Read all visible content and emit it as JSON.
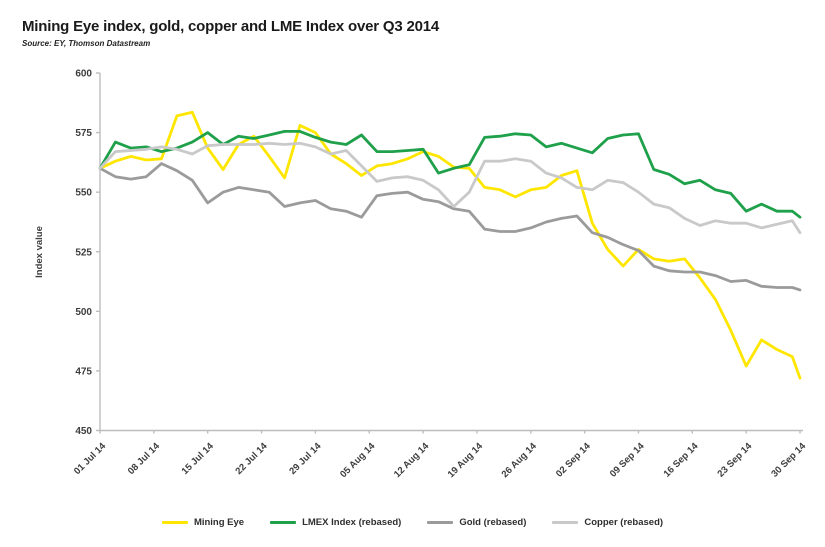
{
  "title": "Mining Eye index, gold, copper and LME Index over Q3 2014",
  "source": "Source: EY, Thomson Datastream",
  "chart_data": {
    "type": "line",
    "title": "Mining Eye index, gold, copper and LME Index over Q3 2014",
    "subtitle": "Source: EY, Thomson Datastream",
    "xlabel": "",
    "ylabel": "Index value",
    "ylim": [
      450,
      600
    ],
    "grid": false,
    "legend_position": "bottom",
    "y_ticks": [
      450,
      475,
      500,
      525,
      550,
      575,
      600
    ],
    "x_tick_labels": [
      "01 Jul 14",
      "08 Jul 14",
      "15 Jul 14",
      "22 Jul 14",
      "29 Jul 14",
      "05 Aug 14",
      "12 Aug 14",
      "19 Aug 14",
      "26 Aug 14",
      "02 Sep 14",
      "09 Sep 14",
      "16 Sep 14",
      "23 Sep 14",
      "30 Sep 14"
    ],
    "x_tick_days": [
      0,
      7,
      14,
      21,
      28,
      35,
      42,
      49,
      56,
      63,
      70,
      77,
      84,
      91
    ],
    "x_days": [
      0,
      2,
      4,
      6,
      8,
      10,
      12,
      14,
      16,
      18,
      20,
      22,
      24,
      26,
      28,
      30,
      32,
      34,
      36,
      38,
      40,
      42,
      44,
      46,
      48,
      50,
      52,
      54,
      56,
      58,
      60,
      62,
      64,
      66,
      68,
      70,
      72,
      74,
      76,
      78,
      80,
      82,
      84,
      86,
      88,
      90,
      91
    ],
    "x_range_days": [
      0,
      91
    ],
    "series": [
      {
        "name": "Mining Eye",
        "color": "#FFE600",
        "values": [
          560,
          563,
          565,
          563.5,
          564,
          582,
          583.5,
          568.5,
          559.5,
          570,
          573.5,
          565,
          556,
          578,
          575,
          566,
          562,
          557,
          561,
          562,
          564,
          567,
          565,
          560.5,
          560,
          552,
          551,
          548,
          551,
          552,
          557,
          559,
          537,
          526,
          519,
          526,
          522,
          521,
          522,
          514,
          505,
          492,
          477,
          488,
          484,
          481,
          472
        ]
      },
      {
        "name": "LMEX Index (rebased)",
        "color": "#1FA04A",
        "values": [
          560,
          571,
          568.5,
          569,
          567,
          568.5,
          571,
          575,
          570,
          573.5,
          572.5,
          574,
          575.5,
          575.5,
          573,
          571,
          570,
          574,
          567,
          567,
          567.5,
          568,
          558,
          560,
          561.5,
          573,
          573.5,
          574.5,
          574,
          569,
          570.5,
          568.5,
          566.5,
          572.5,
          574,
          574.5,
          559.5,
          557.5,
          553.5,
          555,
          551,
          549.5,
          542,
          545,
          542,
          542,
          539.5
        ]
      },
      {
        "name": "Gold (rebased)",
        "color": "#9B9B9B",
        "values": [
          560,
          556.5,
          555.5,
          556.5,
          562,
          559,
          555,
          545.5,
          550,
          552,
          551,
          550,
          544,
          545.5,
          546.5,
          543,
          542,
          539.5,
          548.5,
          549.5,
          550,
          547,
          546,
          543,
          542,
          534.5,
          533.5,
          533.5,
          535,
          537.5,
          539,
          540,
          533,
          531,
          528,
          525.5,
          519,
          517,
          516.5,
          516.5,
          515,
          512.5,
          513,
          510.5,
          510,
          510,
          509
        ]
      },
      {
        "name": "Copper (rebased)",
        "color": "#C9C9C9",
        "values": [
          560,
          567,
          567.5,
          568,
          569,
          568,
          566,
          569.5,
          570,
          570,
          570,
          570.5,
          570,
          570.5,
          569,
          566,
          567.5,
          561,
          554.5,
          556,
          556.5,
          555,
          551,
          544,
          550,
          563,
          563,
          564,
          563,
          558,
          556,
          552,
          551,
          555,
          554,
          550,
          545,
          543.5,
          539,
          536,
          538,
          537,
          537,
          535,
          536.5,
          538,
          533
        ]
      }
    ]
  }
}
